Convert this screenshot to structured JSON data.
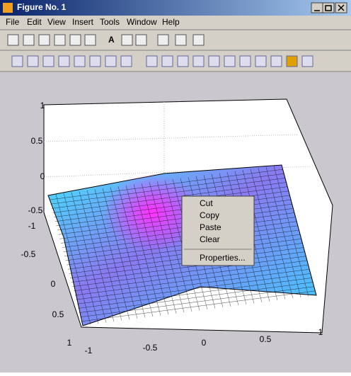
{
  "window": {
    "title": "Figure No. 1"
  },
  "menu": [
    "File",
    "Edit",
    "View",
    "Insert",
    "Tools",
    "Window",
    "Help"
  ],
  "toolbar": {
    "text_tool": "A"
  },
  "axes": {
    "zticks": [
      1,
      0.5,
      0,
      -0.5
    ],
    "yticks": [
      -1,
      -0.5,
      0,
      0.5,
      1
    ],
    "xticks": [
      -1,
      -0.5,
      0,
      0.5,
      1
    ]
  },
  "context_menu": [
    "Cut",
    "Copy",
    "Paste",
    "Clear",
    "Properties..."
  ]
}
